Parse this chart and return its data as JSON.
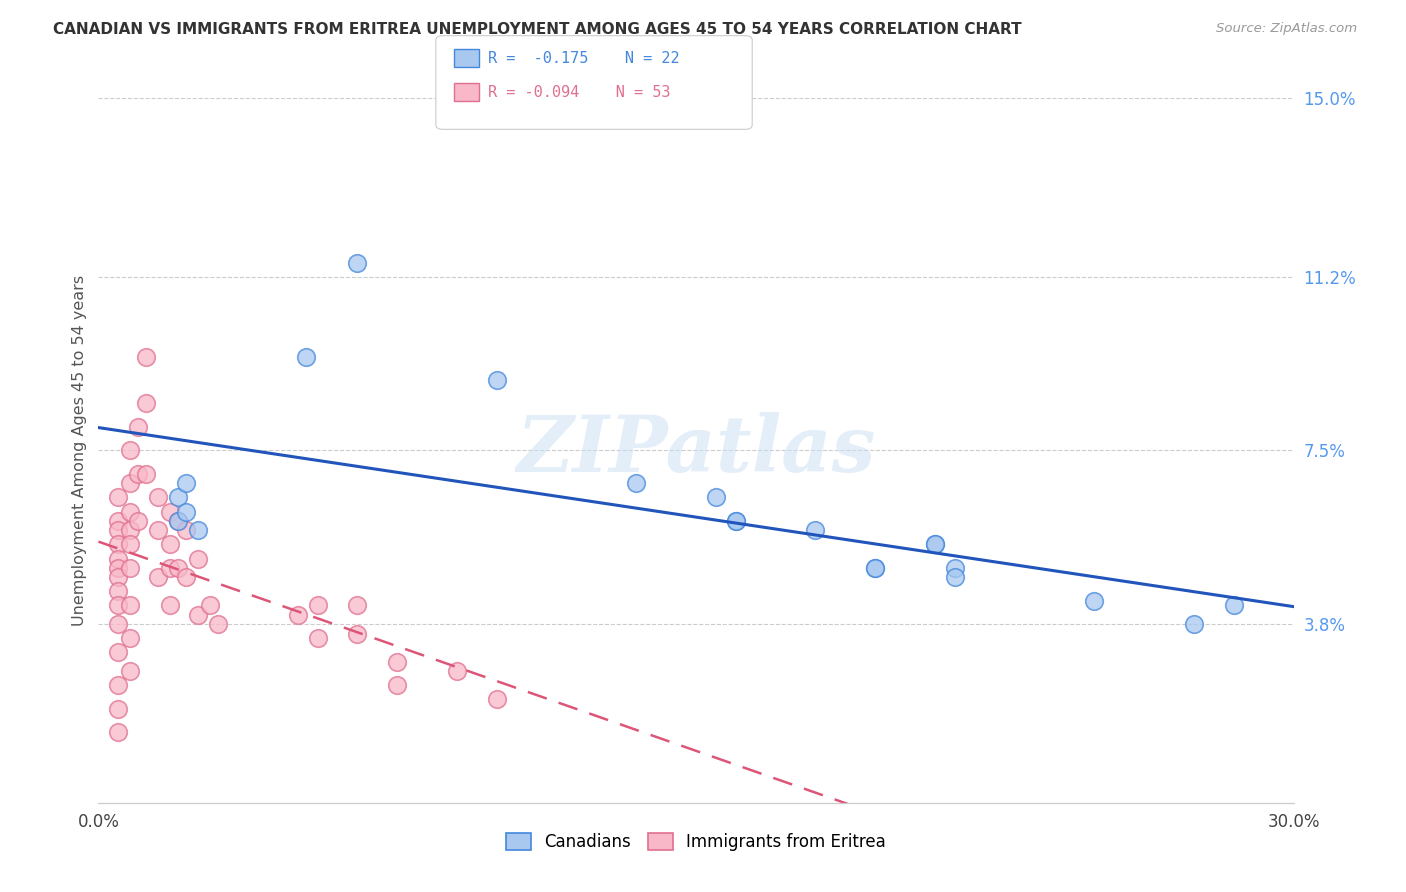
{
  "title": "CANADIAN VS IMMIGRANTS FROM ERITREA UNEMPLOYMENT AMONG AGES 45 TO 54 YEARS CORRELATION CHART",
  "source": "Source: ZipAtlas.com",
  "ylabel": "Unemployment Among Ages 45 to 54 years",
  "xlim": [
    0,
    0.3
  ],
  "ylim": [
    0,
    0.15
  ],
  "xtick_positions": [
    0.0,
    0.05,
    0.1,
    0.15,
    0.2,
    0.25,
    0.3
  ],
  "xticklabels": [
    "0.0%",
    "",
    "",
    "",
    "",
    "",
    "30.0%"
  ],
  "yticks_right": [
    0.038,
    0.075,
    0.112,
    0.15
  ],
  "ytick_right_labels": [
    "3.8%",
    "7.5%",
    "11.2%",
    "15.0%"
  ],
  "legend_r1": "R =  -0.175",
  "legend_n1": "N = 22",
  "legend_r2": "R = -0.094",
  "legend_n2": "N = 53",
  "canadian_fill": "#A8C8F0",
  "canadian_edge": "#4488DD",
  "eritrea_fill": "#F8B8C8",
  "eritrea_edge": "#E07090",
  "canadian_line_color": "#2255BB",
  "eritrea_line_color": "#DD5577",
  "watermark": "ZIPatlas",
  "canadians_x": [
    0.02,
    0.02,
    0.052,
    0.065,
    0.1,
    0.135,
    0.155,
    0.16,
    0.16,
    0.18,
    0.195,
    0.195,
    0.21,
    0.21,
    0.215,
    0.215,
    0.25,
    0.275,
    0.022,
    0.022,
    0.025,
    0.285
  ],
  "canadians_y": [
    0.065,
    0.06,
    0.095,
    0.115,
    0.09,
    0.068,
    0.065,
    0.06,
    0.06,
    0.058,
    0.05,
    0.05,
    0.055,
    0.055,
    0.05,
    0.048,
    0.043,
    0.038,
    0.068,
    0.062,
    0.058,
    0.042
  ],
  "eritrea_x": [
    0.005,
    0.005,
    0.005,
    0.005,
    0.005,
    0.005,
    0.005,
    0.005,
    0.005,
    0.005,
    0.005,
    0.005,
    0.005,
    0.005,
    0.008,
    0.008,
    0.008,
    0.008,
    0.008,
    0.008,
    0.008,
    0.008,
    0.008,
    0.01,
    0.01,
    0.01,
    0.012,
    0.012,
    0.012,
    0.015,
    0.015,
    0.015,
    0.018,
    0.018,
    0.018,
    0.018,
    0.02,
    0.02,
    0.022,
    0.022,
    0.025,
    0.025,
    0.028,
    0.03,
    0.05,
    0.055,
    0.055,
    0.065,
    0.065,
    0.075,
    0.075,
    0.09,
    0.1
  ],
  "eritrea_y": [
    0.065,
    0.06,
    0.058,
    0.055,
    0.052,
    0.05,
    0.048,
    0.045,
    0.042,
    0.038,
    0.032,
    0.025,
    0.02,
    0.015,
    0.075,
    0.068,
    0.062,
    0.058,
    0.055,
    0.05,
    0.042,
    0.035,
    0.028,
    0.08,
    0.07,
    0.06,
    0.095,
    0.085,
    0.07,
    0.065,
    0.058,
    0.048,
    0.062,
    0.055,
    0.05,
    0.042,
    0.06,
    0.05,
    0.058,
    0.048,
    0.052,
    0.04,
    0.042,
    0.038,
    0.04,
    0.042,
    0.035,
    0.042,
    0.036,
    0.03,
    0.025,
    0.028,
    0.022
  ]
}
